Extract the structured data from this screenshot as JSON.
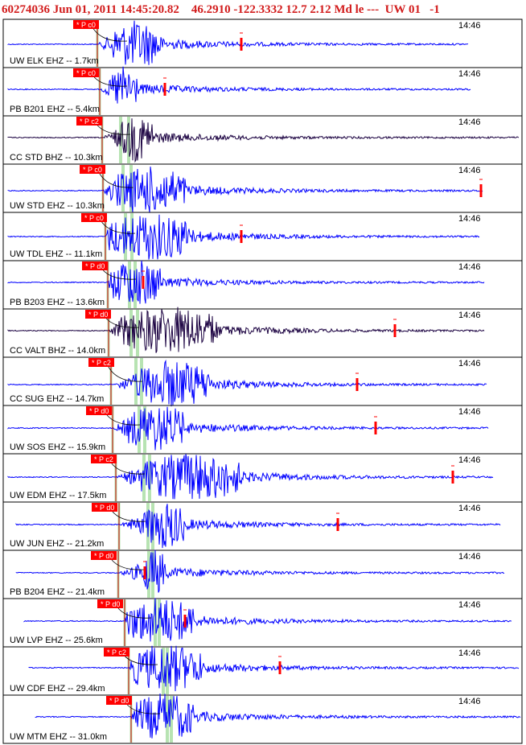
{
  "header": "60274036 Jun 01, 2011 14:45:20.82    46.2910 -122.3332 12.7 2.12 Md le ---  UW 01   -1",
  "time_label": "14:46",
  "colors": {
    "background": "#ffffff",
    "header_text": "#d21c1c",
    "trace_blue": "#0000ff",
    "trace_dark": "#1a0040",
    "pick_flag": "#ff0000",
    "pick_text": "#ffffff",
    "s_window": "#b7e3b2",
    "arrival_line": "#cc0000",
    "end_marker": "#ff0000",
    "frame": "#000000"
  },
  "chart_data": {
    "type": "waveform",
    "traces": [
      {
        "label": "UW ELK EHZ -- 1.7km",
        "pick": "P c0",
        "color": "blue"
      },
      {
        "label": "PB B201 EHZ -- 5.4km",
        "pick": "P c0",
        "color": "blue"
      },
      {
        "label": "CC STD BHZ -- 10.3km",
        "pick": "P c2",
        "color": "dark"
      },
      {
        "label": "UW STD EHZ -- 10.3km",
        "pick": "P c0",
        "color": "blue"
      },
      {
        "label": "UW TDL EHZ -- 11.1km",
        "pick": "P c0",
        "color": "blue"
      },
      {
        "label": "PB B203 EHZ -- 13.6km",
        "pick": "P d0",
        "color": "blue"
      },
      {
        "label": "CC VALT BHZ -- 14.0km",
        "pick": "P d0",
        "color": "dark"
      },
      {
        "label": "CC SUG EHZ -- 14.7km",
        "pick": "P c2",
        "color": "blue"
      },
      {
        "label": "UW SOS EHZ -- 15.9km",
        "pick": "P d0",
        "color": "blue"
      },
      {
        "label": "UW EDM EHZ -- 17.5km",
        "pick": "P c2",
        "color": "blue"
      },
      {
        "label": "UW JUN EHZ -- 21.2km",
        "pick": "P d0",
        "color": "blue"
      },
      {
        "label": "PB B204 EHZ -- 21.4km",
        "pick": "P d0",
        "color": "blue"
      },
      {
        "label": "UW LVP EHZ -- 25.6km",
        "pick": "P d0",
        "color": "blue"
      },
      {
        "label": "UW CDF EHZ -- 29.4km",
        "pick": "P c2",
        "color": "blue"
      },
      {
        "label": "UW MTM EHZ -- 31.0km",
        "pick": "P d0",
        "color": "blue"
      }
    ]
  }
}
